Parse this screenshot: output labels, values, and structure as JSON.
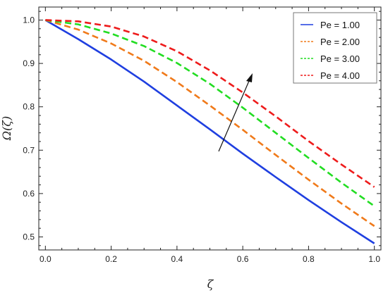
{
  "chart_data": {
    "type": "line",
    "xlabel": "ζ",
    "ylabel": "Ω(ζ)",
    "xlim": [
      0.0,
      1.0
    ],
    "ylim": [
      0.47,
      1.03
    ],
    "x_ticks": [
      "0.0",
      "0.2",
      "0.4",
      "0.6",
      "0.8",
      "1.0"
    ],
    "y_ticks": [
      "0.5",
      "0.6",
      "0.7",
      "0.8",
      "0.9",
      "1.0"
    ],
    "grid": false,
    "legend_position": "top-right",
    "annotation": "arrow indicating increasing Pe",
    "x": [
      0.0,
      0.1,
      0.2,
      0.3,
      0.4,
      0.5,
      0.6,
      0.7,
      0.8,
      0.9,
      1.0
    ],
    "series": [
      {
        "name": "Pe = 1.00",
        "color": "#1f3fe0",
        "dash": "solid",
        "values": [
          1.0,
          0.956,
          0.909,
          0.858,
          0.803,
          0.748,
          0.692,
          0.638,
          0.585,
          0.534,
          0.485
        ]
      },
      {
        "name": "Pe = 2.00",
        "color": "#f07a1a",
        "dash": "dashed",
        "values": [
          1.0,
          0.978,
          0.946,
          0.906,
          0.857,
          0.803,
          0.747,
          0.689,
          0.632,
          0.577,
          0.525
        ]
      },
      {
        "name": "Pe = 3.00",
        "color": "#22dd22",
        "dash": "dashed",
        "values": [
          1.0,
          0.99,
          0.969,
          0.94,
          0.901,
          0.853,
          0.798,
          0.74,
          0.682,
          0.625,
          0.571
        ]
      },
      {
        "name": "Pe = 4.00",
        "color": "#ee1b1b",
        "dash": "dashed",
        "values": [
          1.0,
          0.997,
          0.985,
          0.962,
          0.928,
          0.884,
          0.833,
          0.778,
          0.721,
          0.667,
          0.615
        ]
      }
    ]
  }
}
